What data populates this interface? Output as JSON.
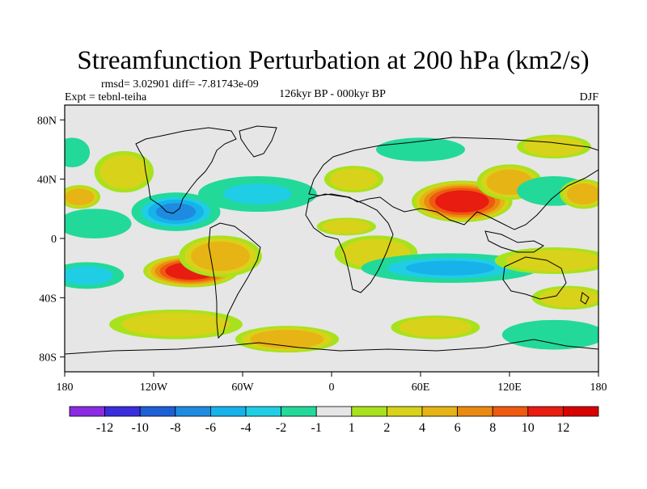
{
  "chart_data": {
    "type": "filled-contour-map",
    "title": "Streamfunction Perturbation at 200 hPa (km2/s)",
    "stats_text": "rmsd= 3.02901 diff= -7.81743e-09",
    "left_label": "Expt = tebnl-teiha",
    "center_label": "126kyr BP - 000kyr BP",
    "right_label": "DJF",
    "lon_range": [
      -180,
      180
    ],
    "lat_range": [
      -90,
      90
    ],
    "x_ticks": [
      {
        "value": -180,
        "label": "180"
      },
      {
        "value": -120,
        "label": "120W"
      },
      {
        "value": -60,
        "label": "60W"
      },
      {
        "value": 0,
        "label": "0"
      },
      {
        "value": 60,
        "label": "60E"
      },
      {
        "value": 120,
        "label": "120E"
      },
      {
        "value": 180,
        "label": "180"
      }
    ],
    "y_ticks": [
      {
        "value": 80,
        "label": "80N"
      },
      {
        "value": 40,
        "label": "40N"
      },
      {
        "value": 0,
        "label": "0"
      },
      {
        "value": -40,
        "label": "40S"
      },
      {
        "value": -80,
        "label": "80S"
      }
    ],
    "colorbar": {
      "levels": [
        -12,
        -10,
        -8,
        -6,
        -4,
        -2,
        -1,
        1,
        2,
        4,
        6,
        8,
        10,
        12
      ],
      "labels": [
        "-12",
        "-10",
        "-8",
        "-6",
        "-4",
        "-2",
        "-1",
        "1",
        "2",
        "4",
        "6",
        "8",
        "10",
        "12"
      ],
      "colors": [
        "#8a2be2",
        "#3a2ddb",
        "#1f5fd6",
        "#1e8ae0",
        "#17b2ea",
        "#1fcee4",
        "#22d99a",
        "#e6e6e6",
        "#a8e21d",
        "#d8d21a",
        "#e6b415",
        "#ea8a10",
        "#ee5a10",
        "#e81c10",
        "#d80000"
      ]
    },
    "anomalies": [
      {
        "lon": -95,
        "lat": -22,
        "value": 11,
        "rx": 32,
        "ry": 11
      },
      {
        "lon": -75,
        "lat": -12,
        "value": 5,
        "rx": 28,
        "ry": 14
      },
      {
        "lon": 88,
        "lat": 25,
        "value": 10,
        "rx": 34,
        "ry": 14
      },
      {
        "lon": 120,
        "lat": 38,
        "value": 4,
        "rx": 22,
        "ry": 12
      },
      {
        "lon": -105,
        "lat": 18,
        "value": -7,
        "rx": 30,
        "ry": 13
      },
      {
        "lon": -50,
        "lat": 30,
        "value": -3,
        "rx": 40,
        "ry": 12
      },
      {
        "lon": -160,
        "lat": 10,
        "value": -2,
        "rx": 25,
        "ry": 10
      },
      {
        "lon": -140,
        "lat": 45,
        "value": 3,
        "rx": 20,
        "ry": 14
      },
      {
        "lon": -170,
        "lat": 28,
        "value": 4,
        "rx": 14,
        "ry": 8
      },
      {
        "lon": -175,
        "lat": 58,
        "value": -2,
        "rx": 12,
        "ry": 10
      },
      {
        "lon": -165,
        "lat": -25,
        "value": -4,
        "rx": 25,
        "ry": 9
      },
      {
        "lon": -105,
        "lat": -58,
        "value": 2,
        "rx": 45,
        "ry": 10
      },
      {
        "lon": -30,
        "lat": -68,
        "value": 4,
        "rx": 35,
        "ry": 9
      },
      {
        "lon": 10,
        "lat": 8,
        "value": 3,
        "rx": 20,
        "ry": 6
      },
      {
        "lon": 15,
        "lat": 40,
        "value": 2,
        "rx": 20,
        "ry": 9
      },
      {
        "lon": 30,
        "lat": -10,
        "value": 2,
        "rx": 28,
        "ry": 12
      },
      {
        "lon": 80,
        "lat": -20,
        "value": -5,
        "rx": 60,
        "ry": 10
      },
      {
        "lon": 150,
        "lat": 32,
        "value": -2,
        "rx": 25,
        "ry": 10
      },
      {
        "lon": 170,
        "lat": 30,
        "value": 4,
        "rx": 16,
        "ry": 10
      },
      {
        "lon": 150,
        "lat": -15,
        "value": 2,
        "rx": 40,
        "ry": 9
      },
      {
        "lon": 160,
        "lat": -40,
        "value": 3,
        "rx": 25,
        "ry": 8
      },
      {
        "lon": 150,
        "lat": -65,
        "value": -2,
        "rx": 35,
        "ry": 10
      },
      {
        "lon": 60,
        "lat": 60,
        "value": -1.5,
        "rx": 30,
        "ry": 8
      },
      {
        "lon": 150,
        "lat": 62,
        "value": 2,
        "rx": 25,
        "ry": 8
      },
      {
        "lon": 70,
        "lat": -60,
        "value": 2,
        "rx": 30,
        "ry": 8
      }
    ]
  }
}
